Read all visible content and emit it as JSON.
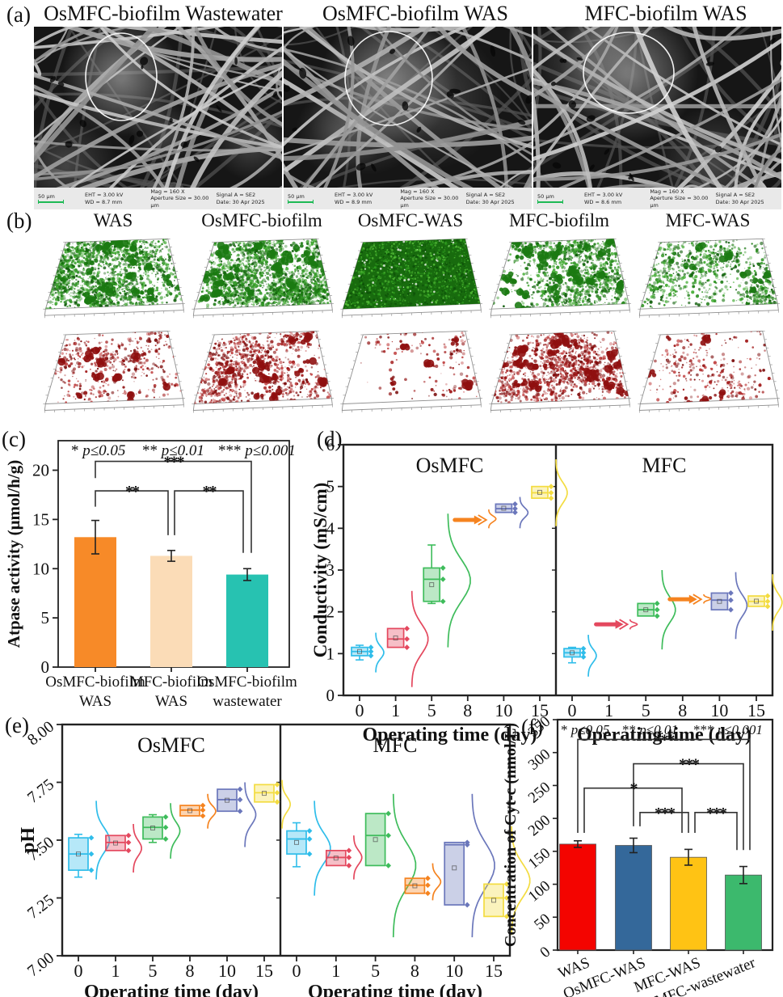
{
  "figure": {
    "panel_tags": {
      "a": "(a)",
      "b": "(b)",
      "c": "(c)",
      "d": "(d)",
      "e": "(e)",
      "f": "(f)"
    }
  },
  "panel_a": {
    "titles": [
      "OsMFC-biofilm Wastewater",
      "OsMFC-biofilm WAS",
      "MFC-biofilm WAS"
    ],
    "sem_meta": [
      {
        "scale": "50 μm",
        "eht": "EHT = 3.00 kV",
        "wd": "WD = 8.7 mm",
        "mag": "Mag =  160 X",
        "aperture": "Aperture Size = 30.00 μm",
        "signal": "Signal A = SE2",
        "date": "Date: 30 Apr 2025"
      },
      {
        "scale": "50 μm",
        "eht": "EHT = 3.00 kV",
        "wd": "WD = 8.9 mm",
        "mag": "Mag =  160 X",
        "aperture": "Aperture Size = 30.00 μm",
        "signal": "Signal A = SE2",
        "date": "Date: 30 Apr 2025"
      },
      {
        "scale": "50 μm",
        "eht": "EHT = 3.00 kV",
        "wd": "WD = 8.6 mm",
        "mag": "Mag =  160 X",
        "aperture": "Aperture Size = 30.00 μm",
        "signal": "Signal A = SE2",
        "date": "Date: 30 Apr 2025"
      }
    ]
  },
  "panel_b": {
    "columns": [
      {
        "label": "WAS",
        "green_density": 0.85,
        "green_solid": false,
        "green_blobs": 20,
        "red_density": 0.2,
        "red_blobs": 10
      },
      {
        "label": "OsMFC-biofilm",
        "green_density": 0.9,
        "green_solid": false,
        "green_blobs": 24,
        "red_density": 0.42,
        "red_blobs": 14
      },
      {
        "label": "OsMFC-WAS",
        "green_density": 1.0,
        "green_solid": true,
        "green_blobs": 0,
        "red_density": 0.06,
        "red_blobs": 5
      },
      {
        "label": "MFC-biofilm",
        "green_density": 0.55,
        "green_solid": false,
        "green_blobs": 30,
        "red_density": 0.45,
        "red_blobs": 26
      },
      {
        "label": "MFC-WAS",
        "green_density": 0.38,
        "green_solid": false,
        "green_blobs": 8,
        "red_density": 0.12,
        "red_blobs": 6
      }
    ]
  },
  "sig_legend": [
    {
      "stars": "*",
      "cond": "p≤0.05"
    },
    {
      "stars": "**",
      "cond": "p≤0.01"
    },
    {
      "stars": "***",
      "cond": "p≤0.001"
    }
  ],
  "chart_data": [
    {
      "id": "c",
      "type": "bar",
      "ylabel": "Atpase activity (μmol/h/g)",
      "ylim": [
        0,
        23
      ],
      "yticks": [
        0,
        5,
        10,
        15,
        20
      ],
      "cat_lines": [
        [
          "OsMFC-biofilm",
          "WAS"
        ],
        [
          "MFC-biofilm",
          "WAS"
        ],
        [
          "OsMFC-biofilm",
          "wastewater"
        ]
      ],
      "values": [
        13.2,
        11.3,
        9.4
      ],
      "errors": [
        1.7,
        0.55,
        0.6
      ],
      "colors": [
        "#F78A28",
        "#FBDCB7",
        "#27C2B1"
      ],
      "brackets": [
        {
          "a": 0,
          "b": 2,
          "y": 20.9,
          "ea": 19.2,
          "eb": 11.6,
          "oa": 0,
          "ob": 5,
          "label": "***"
        },
        {
          "a": 0,
          "b": 1,
          "y": 17.9,
          "ea": 16.3,
          "eb": 13.4,
          "oa": 0,
          "ob": -4,
          "label": "**"
        },
        {
          "a": 1,
          "b": 2,
          "y": 17.9,
          "ea": 13.4,
          "eb": 11.6,
          "oa": 4,
          "ob": -5,
          "label": "**"
        }
      ]
    },
    {
      "id": "d",
      "type": "box-violin",
      "ylabel": "Conductivity (mS/cm)",
      "xlabel": "Operating time (day)",
      "ylim": [
        0,
        6
      ],
      "yticks": [
        0,
        1,
        2,
        3,
        4,
        5,
        6
      ],
      "categories": [
        0,
        1,
        5,
        8,
        10,
        15
      ],
      "colors": [
        "#2FBDEA",
        "#E4485E",
        "#3EBC5B",
        "#F5831F",
        "#6B77BB",
        "#F3DC41"
      ],
      "subplots": [
        {
          "title": "OsMFC",
          "points": [
            {
              "t": "box",
              "lo": 0.85,
              "q1": 0.95,
              "med": 1.05,
              "q3": 1.15,
              "hi": 1.2,
              "vlo": 0.55,
              "vhi": 1.5
            },
            {
              "t": "box",
              "lo": 1.15,
              "q1": 1.15,
              "med": 1.35,
              "q3": 1.6,
              "hi": 1.6,
              "vlo": 0.2,
              "vhi": 2.5
            },
            {
              "t": "box",
              "lo": 2.2,
              "q1": 2.25,
              "med": 2.78,
              "q3": 3.05,
              "hi": 3.6,
              "vlo": 1.15,
              "vhi": 4.35
            },
            {
              "t": "arrow",
              "v": 4.2,
              "vlo": 4.0,
              "vhi": 4.45
            },
            {
              "t": "box",
              "lo": 4.38,
              "q1": 4.38,
              "med": 4.47,
              "q3": 4.58,
              "hi": 4.58,
              "vlo": 4.0,
              "vhi": 4.75
            },
            {
              "t": "box",
              "lo": 4.72,
              "q1": 4.72,
              "med": 4.85,
              "q3": 5.0,
              "hi": 5.0,
              "vlo": 4.05,
              "vhi": 5.65
            }
          ]
        },
        {
          "title": "MFC",
          "points": [
            {
              "t": "box",
              "lo": 0.78,
              "q1": 0.92,
              "med": 1.02,
              "q3": 1.12,
              "hi": 1.15,
              "vlo": 0.45,
              "vhi": 1.45
            },
            {
              "t": "arrow",
              "v": 1.7,
              "vlo": 1.58,
              "vhi": 1.82
            },
            {
              "t": "box",
              "lo": 1.9,
              "q1": 1.9,
              "med": 2.05,
              "q3": 2.2,
              "hi": 2.2,
              "vlo": 1.1,
              "vhi": 3.0
            },
            {
              "t": "arrow",
              "v": 2.3,
              "vlo": 2.2,
              "vhi": 2.42
            },
            {
              "t": "box",
              "lo": 2.05,
              "q1": 2.05,
              "med": 2.28,
              "q3": 2.45,
              "hi": 2.45,
              "vlo": 1.35,
              "vhi": 2.95
            },
            {
              "t": "box",
              "lo": 2.13,
              "q1": 2.13,
              "med": 2.25,
              "q3": 2.38,
              "hi": 2.38,
              "vlo": 1.55,
              "vhi": 2.9
            }
          ]
        }
      ]
    },
    {
      "id": "e",
      "type": "box-violin",
      "ylabel": "pH",
      "xlabel": "Operating time (day)",
      "ylim": [
        7.0,
        8.0
      ],
      "yticks": [
        {
          "v": 7.0,
          "label": "7.00"
        },
        {
          "v": 7.25,
          "label": "7.25"
        },
        {
          "v": 7.5,
          "label": "7.50"
        },
        {
          "v": 7.75,
          "label": "7.75"
        },
        {
          "v": 8.0,
          "label": "8.00"
        }
      ],
      "categories": [
        0,
        1,
        5,
        8,
        10,
        15
      ],
      "colors": [
        "#2FBDEA",
        "#E4485E",
        "#3EBC5B",
        "#F5831F",
        "#6B77BB",
        "#F3DC41"
      ],
      "subplots": [
        {
          "title": "OsMFC",
          "points": [
            {
              "t": "box",
              "lo": 7.34,
              "q1": 7.37,
              "med": 7.44,
              "q3": 7.51,
              "hi": 7.525,
              "vlo": 7.33,
              "vhi": 7.67
            },
            {
              "t": "box",
              "lo": 7.455,
              "q1": 7.455,
              "med": 7.49,
              "q3": 7.52,
              "hi": 7.52,
              "vlo": 7.36,
              "vhi": 7.57
            },
            {
              "t": "box",
              "lo": 7.49,
              "q1": 7.505,
              "med": 7.555,
              "q3": 7.6,
              "hi": 7.61,
              "vlo": 7.42,
              "vhi": 7.66
            },
            {
              "t": "box",
              "lo": 7.605,
              "q1": 7.605,
              "med": 7.63,
              "q3": 7.65,
              "hi": 7.65,
              "vlo": 7.55,
              "vhi": 7.7
            },
            {
              "t": "box",
              "lo": 7.625,
              "q1": 7.625,
              "med": 7.675,
              "q3": 7.72,
              "hi": 7.72,
              "vlo": 7.47,
              "vhi": 7.75
            },
            {
              "t": "box",
              "lo": 7.665,
              "q1": 7.665,
              "med": 7.705,
              "q3": 7.74,
              "hi": 7.74,
              "vlo": 7.55,
              "vhi": 7.76
            }
          ]
        },
        {
          "title": "MFC",
          "points": [
            {
              "t": "box",
              "lo": 7.385,
              "q1": 7.44,
              "med": 7.505,
              "q3": 7.54,
              "hi": 7.575,
              "mean": 7.49,
              "vlo": 7.26,
              "vhi": 7.67
            },
            {
              "t": "box",
              "lo": 7.39,
              "q1": 7.39,
              "med": 7.425,
              "q3": 7.455,
              "hi": 7.455,
              "vlo": 7.33,
              "vhi": 7.52
            },
            {
              "t": "box",
              "lo": 7.39,
              "q1": 7.39,
              "med": 7.52,
              "q3": 7.615,
              "hi": 7.615,
              "vlo": 7.08,
              "vhi": 7.7
            },
            {
              "t": "box",
              "lo": 7.27,
              "q1": 7.27,
              "med": 7.305,
              "q3": 7.335,
              "hi": 7.335,
              "vlo": 7.24,
              "vhi": 7.4
            },
            {
              "t": "box",
              "lo": 7.22,
              "q1": 7.22,
              "med": 7.48,
              "q3": 7.49,
              "hi": 7.49,
              "mean": 7.38,
              "vlo": 7.08,
              "vhi": 7.7
            },
            {
              "t": "box",
              "lo": 7.17,
              "q1": 7.17,
              "med": 7.25,
              "q3": 7.31,
              "hi": 7.31,
              "vlo": 7.09,
              "vhi": 7.56
            }
          ]
        }
      ]
    },
    {
      "id": "f",
      "type": "bar",
      "ylabel": "Concentration of Cyt-c (nmol/L)",
      "ylim": [
        0,
        350
      ],
      "yticks": [
        0,
        50,
        100,
        150,
        200,
        250,
        300,
        350
      ],
      "categories": [
        "WAS",
        "OsMFC-WAS",
        "MFC-WAS",
        "OsMFC-wastewater"
      ],
      "values": [
        161,
        159,
        141,
        114
      ],
      "errors": [
        5,
        11,
        12,
        13
      ],
      "colors": [
        "#F40400",
        "#34689A",
        "#FFC314",
        "#3CB96D"
      ],
      "brackets": [
        {
          "a": 0,
          "b": 3,
          "y": 320,
          "ea": 178,
          "eb": 152,
          "oa": 0,
          "ob": 8,
          "label": "***"
        },
        {
          "a": 1,
          "b": 3,
          "y": 283,
          "ea": 188,
          "eb": 152,
          "oa": 0,
          "ob": 0,
          "label": "***"
        },
        {
          "a": 0,
          "b": 2,
          "y": 246,
          "ea": 178,
          "eb": 178,
          "oa": 8,
          "ob": -8,
          "label": "*"
        },
        {
          "a": 1,
          "b": 2,
          "y": 209,
          "ea": 188,
          "eb": 178,
          "oa": 8,
          "ob": 0,
          "label": "***"
        },
        {
          "a": 2,
          "b": 3,
          "y": 209,
          "ea": 178,
          "eb": 152,
          "oa": 8,
          "ob": -8,
          "label": "***"
        }
      ]
    }
  ]
}
